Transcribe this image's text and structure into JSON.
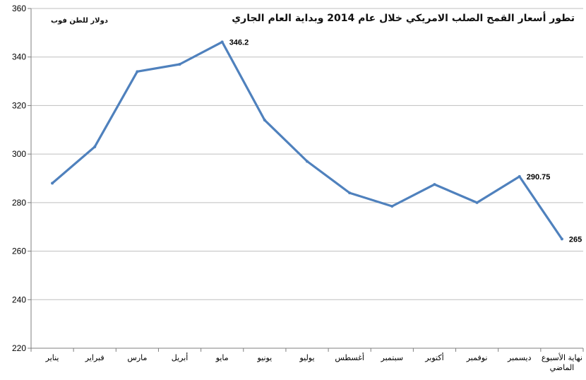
{
  "chart_data": {
    "type": "line",
    "title": "تطور أسعار القمح الصلب الامريكي خلال عام 2014 وبداية العام الجاري",
    "ylabel": "دولار للطن فوب",
    "xlabel": "",
    "ylim": [
      220,
      360
    ],
    "yticks": [
      220,
      240,
      260,
      280,
      300,
      320,
      340,
      360
    ],
    "grid": true,
    "legend": "none",
    "line_color": "#4f81bd",
    "categories": [
      "يناير",
      "فبراير",
      "مارس",
      "أبريل",
      "مايو",
      "يونيو",
      "يوليو",
      "أغسطس",
      "سبتمبر",
      "أكتوبر",
      "نوفمبر",
      "ديسمبر",
      "نهاية الأسبوع الماضي"
    ],
    "values": [
      288,
      303,
      334,
      337,
      346.2,
      314,
      297,
      284,
      278.5,
      287.5,
      280,
      290.75,
      265
    ],
    "data_labels": [
      {
        "index": 4,
        "text": "346.2"
      },
      {
        "index": 11,
        "text": "290.75"
      },
      {
        "index": 12,
        "text": "265"
      }
    ]
  }
}
